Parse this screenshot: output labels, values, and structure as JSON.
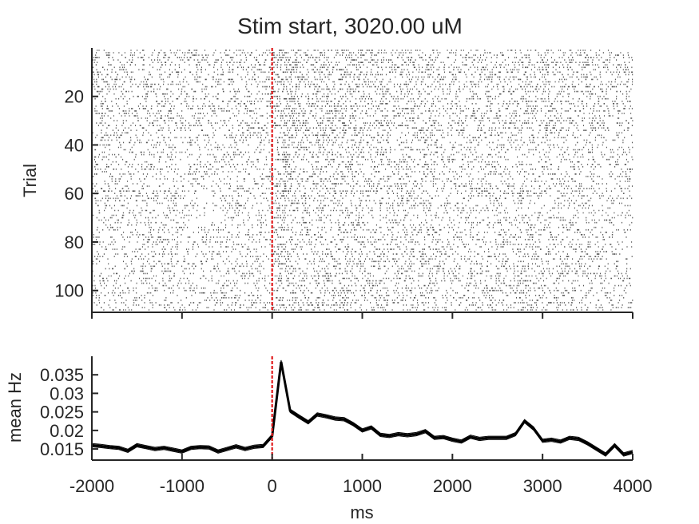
{
  "chart_data": [
    {
      "type": "scatter",
      "title": "Stim start, 3020.00 uM",
      "xlabel": "",
      "ylabel": "Trial",
      "xlim": [
        -2000,
        4000
      ],
      "ylim": [
        108,
        1
      ],
      "y_reversed": true,
      "xticks": [
        -2000,
        -1000,
        0,
        1000,
        2000,
        3000,
        4000
      ],
      "yticks": [
        20,
        40,
        60,
        80,
        100
      ],
      "ytick_labels": [
        "20",
        "40",
        "60",
        "80",
        "100"
      ],
      "n_trials": 108,
      "stimulus_line_x": 0,
      "stimulus_line_color": "#e0191a",
      "marker_color": "#555555",
      "baseline_rate_per_ms": 0.016,
      "peak_rate_per_ms": 0.038
    },
    {
      "type": "line",
      "title": "",
      "xlabel": "ms",
      "ylabel": "mean Hz",
      "xlim": [
        -2000,
        4000
      ],
      "ylim": [
        0.012,
        0.04
      ],
      "xticks": [
        -2000,
        -1000,
        0,
        1000,
        2000,
        3000,
        4000
      ],
      "xtick_labels": [
        "-2000",
        "-1000",
        "0",
        "1000",
        "2000",
        "3000",
        "4000"
      ],
      "yticks": [
        0.015,
        0.02,
        0.025,
        0.03,
        0.035
      ],
      "ytick_labels": [
        "0.015",
        "0.02",
        "0.025",
        "0.03",
        "0.035"
      ],
      "stimulus_line_x": 0,
      "stimulus_line_color": "#e0191a",
      "x": [
        -2000,
        -1900,
        -1800,
        -1700,
        -1600,
        -1500,
        -1400,
        -1300,
        -1200,
        -1100,
        -1000,
        -900,
        -800,
        -700,
        -600,
        -500,
        -400,
        -300,
        -200,
        -100,
        0,
        100,
        200,
        300,
        400,
        500,
        600,
        700,
        800,
        900,
        1000,
        1100,
        1200,
        1300,
        1400,
        1500,
        1600,
        1700,
        1800,
        1900,
        2000,
        2100,
        2200,
        2300,
        2400,
        2500,
        2600,
        2700,
        2800,
        2900,
        3000,
        3100,
        3200,
        3300,
        3400,
        3500,
        3600,
        3700,
        3800,
        3900,
        4000
      ],
      "series": [
        {
          "values": [
            0.016,
            0.0158,
            0.0155,
            0.0153,
            0.0145,
            0.016,
            0.0155,
            0.015,
            0.0153,
            0.0148,
            0.0143,
            0.0153,
            0.0155,
            0.0154,
            0.0143,
            0.015,
            0.0157,
            0.015,
            0.0156,
            0.0158,
            0.0185,
            0.0385,
            0.0253,
            0.0237,
            0.0222,
            0.0243,
            0.0238,
            0.0232,
            0.023,
            0.0217,
            0.02,
            0.0208,
            0.0188,
            0.0185,
            0.019,
            0.0187,
            0.019,
            0.0198,
            0.018,
            0.0182,
            0.0175,
            0.017,
            0.0183,
            0.0177,
            0.018,
            0.018,
            0.018,
            0.019,
            0.0225,
            0.0205,
            0.0172,
            0.0175,
            0.017,
            0.018,
            0.0177,
            0.0165,
            0.015,
            0.0135,
            0.016,
            0.0135,
            0.0142
          ],
          "error": 0.00045
        }
      ]
    }
  ]
}
